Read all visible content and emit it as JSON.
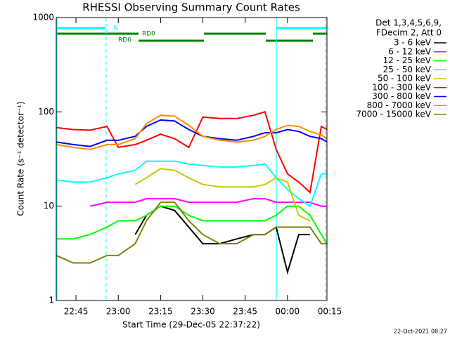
{
  "chart_data": {
    "type": "line",
    "title": "RHESSI Observing Summary Count Rates",
    "x_label": "Start Time (29-Dec-05 22:37:22)",
    "y_label": "Count Rate (s⁻¹ detector⁻¹)",
    "footer": "22-Oct-2021 08:27",
    "legend_header": [
      "Det 1,3,4,5,6,9,",
      "FDecim 2, Att 0"
    ],
    "annotations": [
      "N",
      "RD0",
      "RD6"
    ],
    "log_y": true,
    "ylim": [
      1,
      1000
    ],
    "yticks": [
      1,
      10,
      100,
      1000
    ],
    "xlim": [
      "22:38",
      "00:14"
    ],
    "xticks": [
      "22:45",
      "23:00",
      "23:15",
      "23:30",
      "23:45",
      "00:00",
      "00:15"
    ],
    "x": [
      "22:38",
      "22:44",
      "22:50",
      "22:56",
      "23:00",
      "23:06",
      "23:10",
      "23:15",
      "23:20",
      "23:25",
      "23:30",
      "23:36",
      "23:42",
      "23:48",
      "23:52",
      "23:56",
      "00:00",
      "00:04",
      "00:08",
      "00:12",
      "00:14"
    ],
    "series": [
      {
        "name": "3 - 6 keV",
        "color": "#000000",
        "values": [
          null,
          null,
          null,
          null,
          null,
          5,
          8,
          10,
          9,
          6,
          4,
          4,
          4.5,
          5,
          5,
          6,
          2,
          5,
          5,
          null,
          null
        ]
      },
      {
        "name": "6 - 12 keV",
        "color": "#ff00ff",
        "values": [
          null,
          null,
          10,
          11,
          11,
          11,
          12,
          12,
          12,
          11,
          11,
          11,
          11,
          12,
          12,
          11,
          11,
          11,
          11,
          10,
          10
        ]
      },
      {
        "name": "12 - 25 keV",
        "color": "#00ff00",
        "values": [
          4.5,
          4.5,
          5,
          6,
          7,
          7,
          8,
          10,
          10,
          8,
          7,
          7,
          7,
          7,
          7,
          8,
          10,
          10,
          8,
          5,
          4
        ]
      },
      {
        "name": "25 - 50 keV",
        "color": "#00ffff",
        "values": [
          19,
          18,
          18,
          20,
          22,
          24,
          30,
          30,
          30,
          28,
          27,
          26,
          26,
          27,
          28,
          20,
          15,
          12,
          10,
          22,
          22
        ]
      },
      {
        "name": "50 - 100 keV",
        "color": "#c8c800",
        "values": [
          null,
          null,
          null,
          null,
          null,
          17,
          20,
          25,
          24,
          20,
          17,
          16,
          16,
          16,
          17,
          20,
          18,
          8,
          7,
          null,
          null
        ]
      },
      {
        "name": "100 - 300 keV",
        "color": "#ff0000",
        "values": [
          68,
          65,
          64,
          70,
          42,
          45,
          50,
          58,
          52,
          42,
          88,
          85,
          85,
          92,
          100,
          40,
          22,
          18,
          14,
          70,
          65
        ]
      },
      {
        "name": "300 - 800 keV",
        "color": "#0000ff",
        "values": [
          48,
          45,
          43,
          50,
          50,
          55,
          70,
          82,
          80,
          65,
          55,
          52,
          50,
          55,
          60,
          60,
          65,
          62,
          55,
          52,
          48
        ]
      },
      {
        "name": "800 - 7000 keV",
        "color": "#ff8c00",
        "values": [
          45,
          42,
          40,
          45,
          45,
          52,
          75,
          92,
          90,
          72,
          55,
          50,
          48,
          50,
          55,
          65,
          72,
          70,
          62,
          57,
          52
        ]
      },
      {
        "name": "7000 - 15000 keV",
        "color": "#808000",
        "values": [
          3,
          2.5,
          2.5,
          3,
          3,
          4,
          7,
          11,
          11,
          7,
          5,
          4,
          4,
          5,
          5,
          6,
          6,
          6,
          6,
          4,
          4
        ]
      }
    ]
  }
}
